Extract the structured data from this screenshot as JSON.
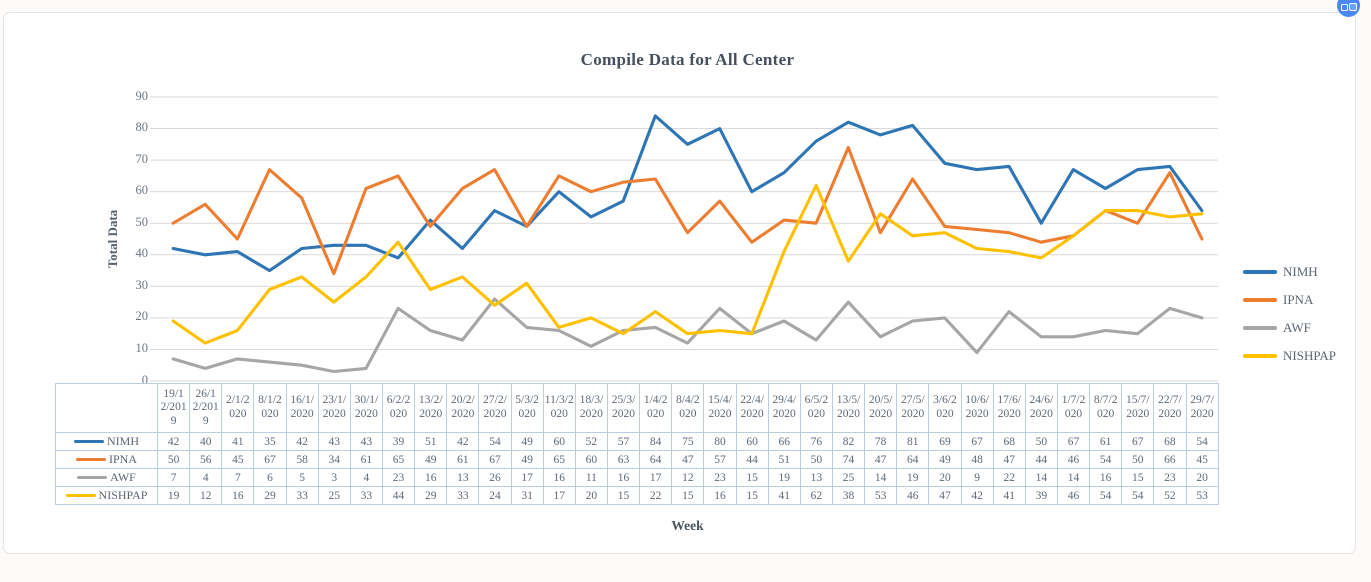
{
  "badge": {
    "color": "#4a89f2"
  },
  "chart_data": {
    "type": "line",
    "title": "Compile Data for All Center",
    "xlabel": "Week",
    "ylabel": "Total Data",
    "ylim": [
      0,
      90
    ],
    "ytick_interval": 10,
    "grid": true,
    "gridline_color": "#d9d9d9",
    "legend_position": "right",
    "categories": [
      "19/12/2019",
      "26/12/2019",
      "2/1/2020",
      "8/1/2020",
      "16/1/2020",
      "23/1/2020",
      "30/1/2020",
      "6/2/2020",
      "13/2/2020",
      "20/2/2020",
      "27/2/2020",
      "5/3/2020",
      "11/3/2020",
      "18/3/2020",
      "25/3/2020",
      "1/4/2020",
      "8/4/2020",
      "15/4/2020",
      "22/4/2020",
      "29/4/2020",
      "6/5/2020",
      "13/5/2020",
      "20/5/2020",
      "27/5/2020",
      "3/6/2020",
      "10/6/2020",
      "17/6/2020",
      "24/6/2020",
      "1/7/2020",
      "8/7/2020",
      "15/7/2020",
      "22/7/2020",
      "29/7/2020"
    ],
    "series": [
      {
        "name": "NIMH",
        "color": "#2e75b6",
        "values": [
          42,
          40,
          41,
          35,
          42,
          43,
          43,
          39,
          51,
          42,
          54,
          49,
          60,
          52,
          57,
          84,
          75,
          80,
          60,
          66,
          76,
          82,
          78,
          81,
          69,
          67,
          68,
          50,
          67,
          61,
          67,
          68,
          54
        ]
      },
      {
        "name": "IPNA",
        "color": "#ed7d31",
        "values": [
          50,
          56,
          45,
          67,
          58,
          34,
          61,
          65,
          49,
          61,
          67,
          49,
          65,
          60,
          63,
          64,
          47,
          57,
          44,
          51,
          50,
          74,
          47,
          64,
          49,
          48,
          47,
          44,
          46,
          54,
          50,
          66,
          45
        ]
      },
      {
        "name": "AWF",
        "color": "#a6a6a6",
        "values": [
          7,
          4,
          7,
          6,
          5,
          3,
          4,
          23,
          16,
          13,
          26,
          17,
          16,
          11,
          16,
          17,
          12,
          23,
          15,
          19,
          13,
          25,
          14,
          19,
          20,
          9,
          22,
          14,
          14,
          16,
          15,
          23,
          20
        ]
      },
      {
        "name": "NISHPAP",
        "color": "#ffc000",
        "values": [
          19,
          12,
          16,
          29,
          33,
          25,
          33,
          44,
          29,
          33,
          24,
          31,
          17,
          20,
          15,
          22,
          15,
          16,
          15,
          41,
          62,
          38,
          53,
          46,
          47,
          42,
          41,
          39,
          46,
          54,
          54,
          52,
          53
        ]
      }
    ]
  }
}
